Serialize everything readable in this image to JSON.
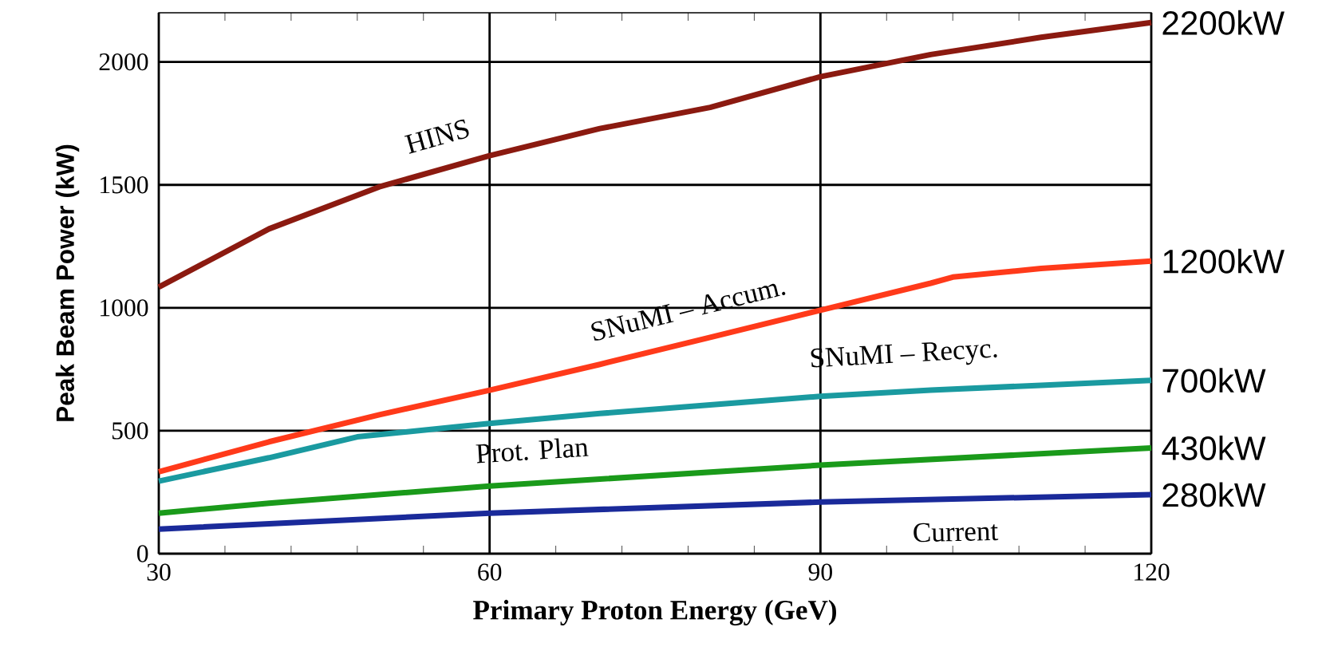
{
  "chart_data": {
    "type": "line",
    "xlabel": "Primary Proton Energy (GeV)",
    "ylabel": "Peak Beam Power (kW)",
    "xlim": [
      30,
      120
    ],
    "ylim": [
      0,
      2200
    ],
    "xticks": [
      30,
      60,
      90,
      120
    ],
    "yticks": [
      0,
      500,
      1000,
      1500,
      2000
    ],
    "grid": true,
    "series": [
      {
        "name": "HINS",
        "color": "#8b1a10",
        "x": [
          30,
          40,
          50,
          60,
          70,
          80,
          90,
          100,
          110,
          120
        ],
        "values": [
          1084,
          1321,
          1492,
          1619,
          1729,
          1815,
          1940,
          2030,
          2100,
          2160
        ]
      },
      {
        "name": "SNuMI – Accum.",
        "color": "#ff3a1a",
        "x": [
          30,
          40,
          50,
          60,
          70,
          80,
          90,
          100,
          102,
          110,
          120
        ],
        "values": [
          333,
          455,
          565,
          665,
          770,
          880,
          990,
          1100,
          1125,
          1160,
          1190
        ]
      },
      {
        "name": "SNuMI – Recyc.",
        "color": "#1a9aa0",
        "x": [
          30,
          40,
          48,
          60,
          70,
          80,
          90,
          100,
          110,
          120
        ],
        "values": [
          295,
          390,
          475,
          530,
          570,
          605,
          640,
          665,
          685,
          705
        ]
      },
      {
        "name": "Prot. Plan",
        "color": "#1a9a1a",
        "x": [
          30,
          40,
          60,
          90,
          120
        ],
        "values": [
          165,
          205,
          275,
          360,
          430
        ]
      },
      {
        "name": "Current",
        "color": "#1a2a9a",
        "x": [
          30,
          60,
          90,
          120
        ],
        "values": [
          100,
          165,
          210,
          240
        ]
      }
    ],
    "annotations": [
      "2200kW",
      "1200kW",
      "700kW",
      "430kW",
      "280kW"
    ]
  }
}
